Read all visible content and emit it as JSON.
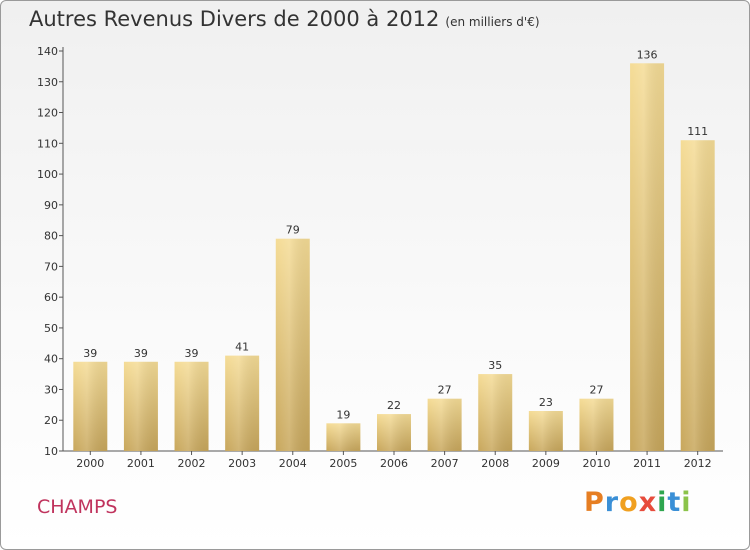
{
  "header": {
    "title": "Autres Revenus Divers de 2000 à 2012",
    "unit": "(en milliers d'€)"
  },
  "footer": {
    "place": "CHAMPS",
    "logo_letters": [
      "P",
      "r",
      "o",
      "x",
      "i",
      "t",
      "i"
    ]
  },
  "chart_data": {
    "type": "bar",
    "title": "Autres Revenus Divers de 2000 à 2012",
    "subtitle": "(en milliers d'€)",
    "xlabel": "",
    "ylabel": "",
    "categories": [
      "2000",
      "2001",
      "2002",
      "2003",
      "2004",
      "2005",
      "2006",
      "2007",
      "2008",
      "2009",
      "2010",
      "2011",
      "2012"
    ],
    "values": [
      39,
      39,
      39,
      41,
      79,
      19,
      22,
      27,
      35,
      23,
      27,
      136,
      111
    ],
    "ylim": [
      10,
      140
    ],
    "yticks": [
      10,
      20,
      30,
      40,
      50,
      60,
      70,
      80,
      90,
      100,
      110,
      120,
      130,
      140
    ],
    "grid": false,
    "bar_color_top": "#f5dc96",
    "bar_color_bottom": "#c8a75c"
  }
}
